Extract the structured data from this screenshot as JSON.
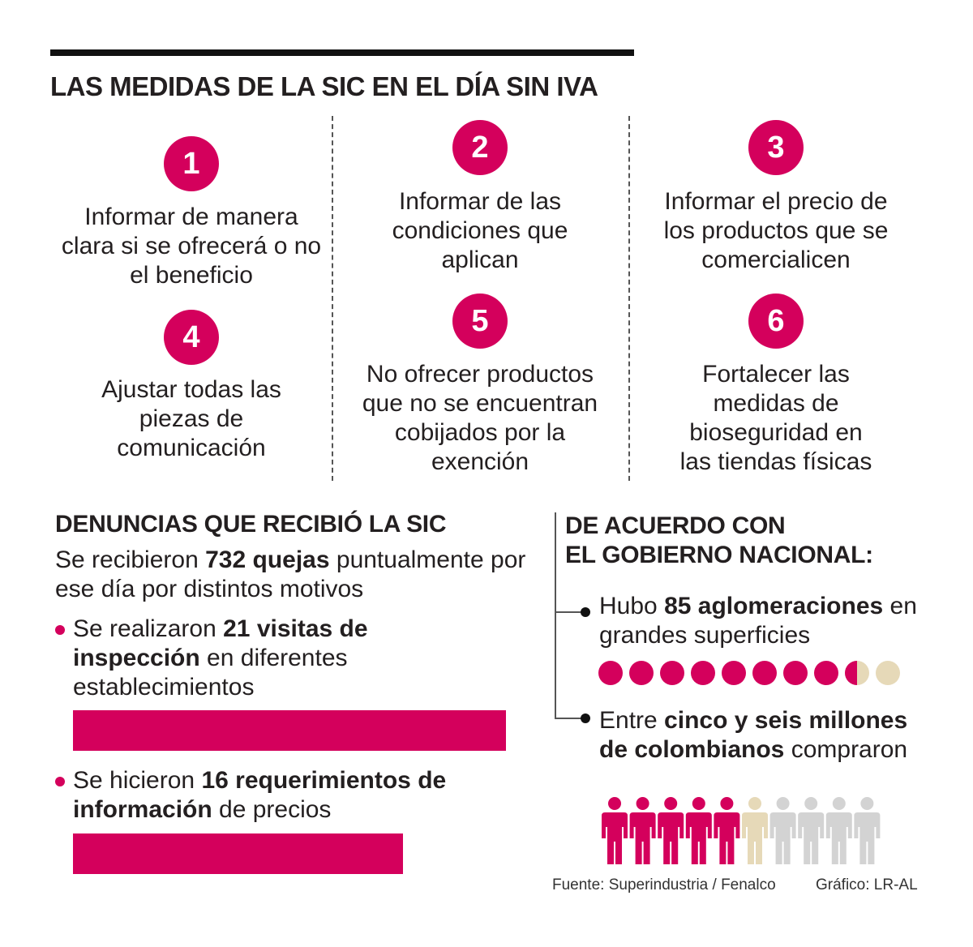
{
  "title": "LAS MEDIDAS DE LA SIC EN EL DÍA SIN IVA",
  "measures": [
    {
      "number": "1",
      "text": "Informar de manera clara si se ofrecerá o no el beneficio"
    },
    {
      "number": "2",
      "text": "Informar de las condiciones que aplican"
    },
    {
      "number": "3",
      "text": "Informar el precio de los productos que se comercialicen"
    },
    {
      "number": "4",
      "text": "Ajustar todas las piezas de comunicación"
    },
    {
      "number": "5",
      "text": "No ofrecer productos que no se encuentran cobijados por la exención"
    },
    {
      "number": "6",
      "text": "Fortalecer las medidas de bioseguridad en las tiendas físicas"
    }
  ],
  "complaints": {
    "heading": "DENUNCIAS QUE RECIBIÓ LA SIC",
    "intro_pre": "Se recibieron ",
    "intro_bold": "732 quejas",
    "intro_post": " puntualmente por ese día por distintos motivos",
    "items": [
      {
        "pre": "Se realizaron ",
        "bold": "21 visitas de inspección",
        "post": " en diferentes establecimientos",
        "value": 21
      },
      {
        "pre": "Se hicieron ",
        "bold": "16 requerimientos de información",
        "post": " de precios",
        "value": 16
      }
    ]
  },
  "government": {
    "heading_line1": "DE ACUERDO CON",
    "heading_line2": "EL GOBIERNO NACIONAL:",
    "item1": {
      "pre": "Hubo ",
      "bold": "85 aglomeraciones",
      "post": " en grandes superficies",
      "dots_total": 10,
      "dots_value": 8.5
    },
    "item2": {
      "pre": "Entre ",
      "bold": "cinco y seis millones de colombianos",
      "post": " compraron",
      "people_total": 10,
      "people_full": 5,
      "people_partial": 1
    }
  },
  "colors": {
    "accent": "#d4005c",
    "partial": "#e6d9b8",
    "empty": "#d3d3d3"
  },
  "source": "Fuente: Superindustria / Fenalco",
  "credit": "Gráfico: LR-AL"
}
